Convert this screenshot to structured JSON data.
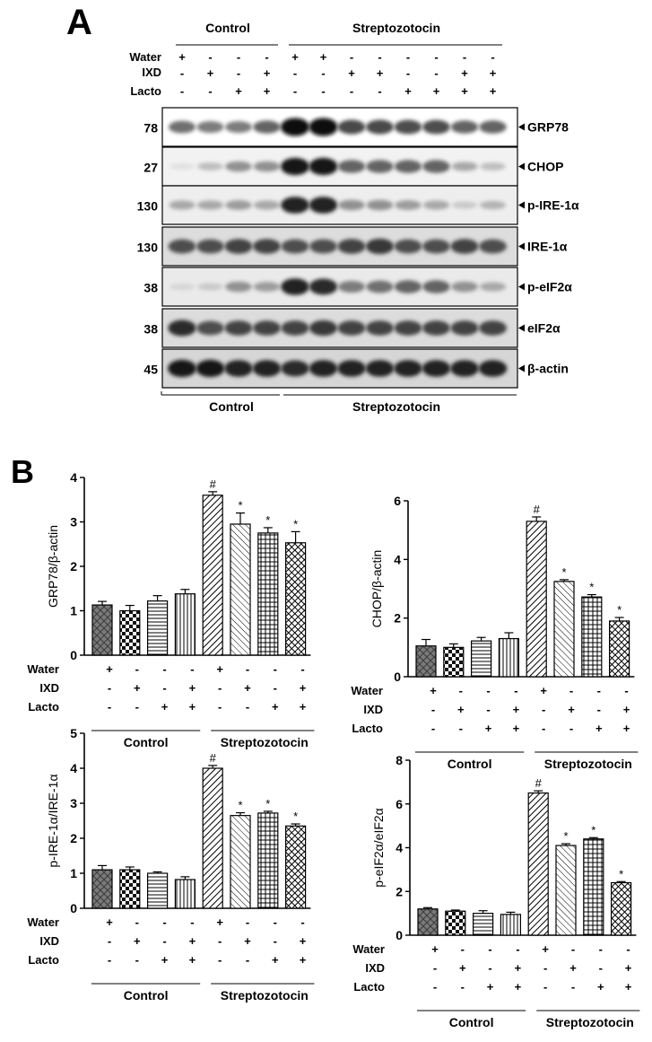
{
  "panel_a": {
    "letter": "A",
    "groups": {
      "control": "Control",
      "stz": "Streptozotocin"
    },
    "row_labels": {
      "water": "Water",
      "ixd": "IXD",
      "lacto": "Lacto"
    },
    "lanes": {
      "water": [
        "+",
        "-",
        "-",
        "-",
        "+",
        "+",
        "-",
        "-",
        "-",
        "-",
        "-",
        "-"
      ],
      "ixd": [
        "-",
        "+",
        "-",
        "+",
        "-",
        "-",
        "+",
        "+",
        "-",
        "-",
        "+",
        "+"
      ],
      "lacto": [
        "-",
        "-",
        "+",
        "+",
        "-",
        "-",
        "-",
        "-",
        "+",
        "+",
        "+",
        "+"
      ]
    },
    "blots": [
      {
        "mw": "78",
        "protein": "GRP78",
        "intensity": [
          0.55,
          0.5,
          0.5,
          0.6,
          1.0,
          1.0,
          0.72,
          0.72,
          0.7,
          0.7,
          0.6,
          0.6
        ],
        "bg": "#ffffff"
      },
      {
        "mw": "27",
        "protein": "CHOP",
        "intensity": [
          0.05,
          0.2,
          0.4,
          0.4,
          0.95,
          0.95,
          0.6,
          0.6,
          0.6,
          0.6,
          0.3,
          0.2
        ],
        "bg": "#f2f2f2"
      },
      {
        "mw": "130",
        "protein": "p-IRE-1α",
        "intensity": [
          0.3,
          0.3,
          0.35,
          0.3,
          0.9,
          0.9,
          0.4,
          0.4,
          0.35,
          0.3,
          0.15,
          0.25
        ],
        "bg": "#eeeeee"
      },
      {
        "mw": "130",
        "protein": "IRE-1α",
        "intensity": [
          0.7,
          0.7,
          0.75,
          0.75,
          0.7,
          0.7,
          0.75,
          0.8,
          0.7,
          0.7,
          0.75,
          0.7
        ],
        "bg": "#dddddd"
      },
      {
        "mw": "38",
        "protein": "p-eIF2α",
        "intensity": [
          0.1,
          0.15,
          0.4,
          0.35,
          0.9,
          0.85,
          0.5,
          0.55,
          0.6,
          0.6,
          0.4,
          0.3
        ],
        "bg": "#eaeaea"
      },
      {
        "mw": "38",
        "protein": "eIF2α",
        "intensity": [
          0.85,
          0.7,
          0.75,
          0.75,
          0.75,
          0.8,
          0.75,
          0.75,
          0.75,
          0.75,
          0.75,
          0.75
        ],
        "bg": "#dcdcdc"
      },
      {
        "mw": "45",
        "protein": "β-actin",
        "intensity": [
          0.95,
          0.95,
          0.9,
          0.9,
          0.85,
          0.9,
          0.9,
          0.9,
          0.9,
          0.9,
          0.9,
          0.9
        ],
        "bg": "#d6d6d6"
      }
    ]
  },
  "panel_b": {
    "letter": "B"
  },
  "chart_data": [
    {
      "type": "bar",
      "ylabel": "GRP78/β-actin",
      "ylim": [
        0,
        4
      ],
      "yticks": [
        "0",
        "1",
        "2",
        "3",
        "4"
      ],
      "values": [
        1.13,
        1.0,
        1.22,
        1.38,
        3.6,
        2.95,
        2.75,
        2.53
      ],
      "errors": [
        0.08,
        0.12,
        0.12,
        0.1,
        0.08,
        0.25,
        0.12,
        0.25
      ],
      "marks": [
        "",
        "",
        "",
        "",
        "#",
        "*",
        "*",
        "*"
      ],
      "rows": {
        "water": [
          "+",
          "-",
          "-",
          "-",
          "+",
          "-",
          "-",
          "-"
        ],
        "ixd": [
          "-",
          "+",
          "-",
          "+",
          "-",
          "+",
          "-",
          "+"
        ],
        "lacto": [
          "-",
          "-",
          "+",
          "+",
          "-",
          "-",
          "+",
          "+"
        ]
      },
      "groups": [
        "Control",
        "Streptozotocin"
      ]
    },
    {
      "type": "bar",
      "ylabel": "CHOP/β-actin",
      "ylim": [
        0,
        6
      ],
      "yticks": [
        "0",
        "2",
        "4",
        "6"
      ],
      "values": [
        1.05,
        1.0,
        1.22,
        1.3,
        5.3,
        3.25,
        2.72,
        1.9
      ],
      "errors": [
        0.22,
        0.12,
        0.12,
        0.2,
        0.15,
        0.06,
        0.08,
        0.12
      ],
      "marks": [
        "",
        "",
        "",
        "",
        "#",
        "*",
        "*",
        "*"
      ],
      "rows": {
        "water": [
          "+",
          "-",
          "-",
          "-",
          "+",
          "-",
          "-",
          "-"
        ],
        "ixd": [
          "-",
          "+",
          "-",
          "+",
          "-",
          "+",
          "-",
          "+"
        ],
        "lacto": [
          "-",
          "-",
          "+",
          "+",
          "-",
          "-",
          "+",
          "+"
        ]
      },
      "groups": [
        "Control",
        "Streptozotocin"
      ]
    },
    {
      "type": "bar",
      "ylabel": "p-IRE-1α/IRE-1α",
      "ylim": [
        0,
        5
      ],
      "yticks": [
        "0",
        "1",
        "2",
        "3",
        "4",
        "5"
      ],
      "values": [
        1.1,
        1.1,
        1.0,
        0.82,
        4.0,
        2.65,
        2.72,
        2.35
      ],
      "errors": [
        0.12,
        0.08,
        0.04,
        0.08,
        0.08,
        0.08,
        0.05,
        0.06
      ],
      "marks": [
        "",
        "",
        "",
        "",
        "#",
        "*",
        "*",
        "*"
      ],
      "rows": {
        "water": [
          "+",
          "-",
          "-",
          "-",
          "+",
          "-",
          "-",
          "-"
        ],
        "ixd": [
          "-",
          "+",
          "-",
          "+",
          "-",
          "+",
          "-",
          "+"
        ],
        "lacto": [
          "-",
          "-",
          "+",
          "+",
          "-",
          "-",
          "+",
          "+"
        ]
      },
      "groups": [
        "Control",
        "Streptozotocin"
      ]
    },
    {
      "type": "bar",
      "ylabel": "p-eIF2α/eIF2α",
      "ylim": [
        0,
        8
      ],
      "yticks": [
        "0",
        "2",
        "4",
        "6",
        "8"
      ],
      "values": [
        1.2,
        1.1,
        1.0,
        0.95,
        6.5,
        4.1,
        4.4,
        2.4
      ],
      "errors": [
        0.06,
        0.05,
        0.12,
        0.1,
        0.1,
        0.08,
        0.06,
        0.05
      ],
      "marks": [
        "",
        "",
        "",
        "",
        "#",
        "*",
        "*",
        "*"
      ],
      "rows": {
        "water": [
          "+",
          "-",
          "-",
          "-",
          "+",
          "-",
          "-",
          "-"
        ],
        "ixd": [
          "-",
          "+",
          "-",
          "+",
          "-",
          "+",
          "-",
          "+"
        ],
        "lacto": [
          "-",
          "-",
          "+",
          "+",
          "-",
          "-",
          "+",
          "+"
        ]
      },
      "groups": [
        "Control",
        "Streptozotocin"
      ]
    }
  ],
  "colors": {
    "ink": "#000000",
    "bar_fill": "#c8c8c8"
  }
}
